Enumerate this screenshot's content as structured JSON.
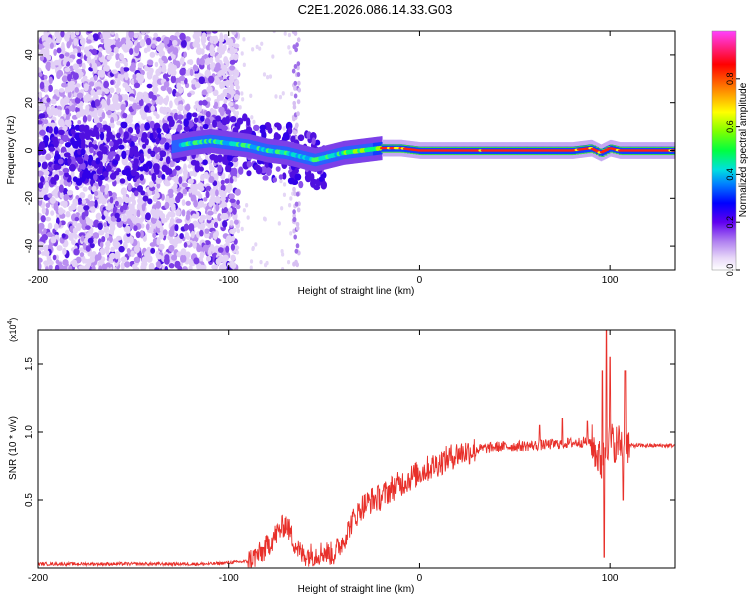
{
  "title": "C2E1.2026.086.14.33.G03",
  "chart_data": [
    {
      "type": "heatmap",
      "xlabel": "Height of straight line (km)",
      "ylabel": "Frequency (Hz)",
      "xlim": [
        -200,
        134
      ],
      "ylim": [
        -50,
        50
      ],
      "xticks": [
        -200,
        -100,
        0,
        100
      ],
      "yticks": [
        -40,
        -20,
        0,
        20,
        40
      ],
      "colorbar": {
        "label": "Normalized spectral amplitude",
        "range": [
          0.0,
          1.0
        ],
        "ticks": [
          "0.0",
          "0.2",
          "0.4",
          "0.6",
          "0.8"
        ],
        "colormap": [
          "#ffffff",
          "#d8c0f0",
          "#8040e0",
          "#4000f0",
          "#0040ff",
          "#00c0ff",
          "#00ff80",
          "#80ff00",
          "#ffff00",
          "#ff8000",
          "#ff0000",
          "#ff00ff"
        ]
      },
      "ridge_center_hz": [
        [
          -200,
          -3
        ],
        [
          -180,
          -2
        ],
        [
          -160,
          -1
        ],
        [
          -140,
          0
        ],
        [
          -120,
          3
        ],
        [
          -110,
          4
        ],
        [
          -100,
          3
        ],
        [
          -90,
          2
        ],
        [
          -80,
          0
        ],
        [
          -70,
          -1
        ],
        [
          -60,
          -3
        ],
        [
          -55,
          -4
        ],
        [
          -50,
          -3
        ],
        [
          -45,
          -2
        ],
        [
          -40,
          -1
        ],
        [
          -30,
          0
        ],
        [
          -20,
          1
        ],
        [
          -10,
          1
        ],
        [
          0,
          0
        ],
        [
          20,
          0
        ],
        [
          40,
          0
        ],
        [
          60,
          0
        ],
        [
          80,
          0
        ],
        [
          90,
          1
        ],
        [
          95,
          -1
        ],
        [
          100,
          1
        ],
        [
          105,
          0
        ],
        [
          120,
          0
        ],
        [
          134,
          0
        ]
      ],
      "noise_region_km": [
        -200,
        -100
      ]
    },
    {
      "type": "line",
      "xlabel": "Height of straight line (km)",
      "ylabel": "SNR (10 * v/v)",
      "y_multiplier": "(x10",
      "y_multiplier_exp": "4",
      "xlim": [
        -200,
        134
      ],
      "ylim": [
        0.0,
        1.75
      ],
      "xticks": [
        -200,
        -100,
        0,
        100
      ],
      "yticks": [
        "0.5",
        "1.0",
        "1.5"
      ],
      "color": "#e8302a",
      "series_envelope": [
        [
          -200,
          0.03
        ],
        [
          -150,
          0.03
        ],
        [
          -110,
          0.03
        ],
        [
          -90,
          0.05
        ],
        [
          -82,
          0.12
        ],
        [
          -75,
          0.25
        ],
        [
          -70,
          0.33
        ],
        [
          -66,
          0.2
        ],
        [
          -62,
          0.1
        ],
        [
          -55,
          0.1
        ],
        [
          -50,
          0.12
        ],
        [
          -45,
          0.1
        ],
        [
          -40,
          0.2
        ],
        [
          -35,
          0.35
        ],
        [
          -30,
          0.45
        ],
        [
          -25,
          0.5
        ],
        [
          -20,
          0.52
        ],
        [
          -15,
          0.58
        ],
        [
          -10,
          0.62
        ],
        [
          -5,
          0.66
        ],
        [
          0,
          0.7
        ],
        [
          10,
          0.77
        ],
        [
          20,
          0.84
        ],
        [
          30,
          0.87
        ],
        [
          40,
          0.89
        ],
        [
          60,
          0.9
        ],
        [
          80,
          0.92
        ],
        [
          90,
          0.93
        ],
        [
          96,
          0.75
        ],
        [
          98,
          0.93
        ],
        [
          105,
          0.92
        ],
        [
          110,
          0.9
        ],
        [
          120,
          0.9
        ],
        [
          134,
          0.9
        ]
      ],
      "spikes": [
        [
          97,
          0.08
        ],
        [
          98,
          1.75
        ],
        [
          100,
          1.55
        ],
        [
          96,
          1.45
        ],
        [
          103,
          0.8
        ],
        [
          107,
          0.5
        ],
        [
          108,
          1.45
        ],
        [
          75,
          1.1
        ],
        [
          88,
          1.08
        ],
        [
          63,
          1.05
        ]
      ]
    }
  ]
}
